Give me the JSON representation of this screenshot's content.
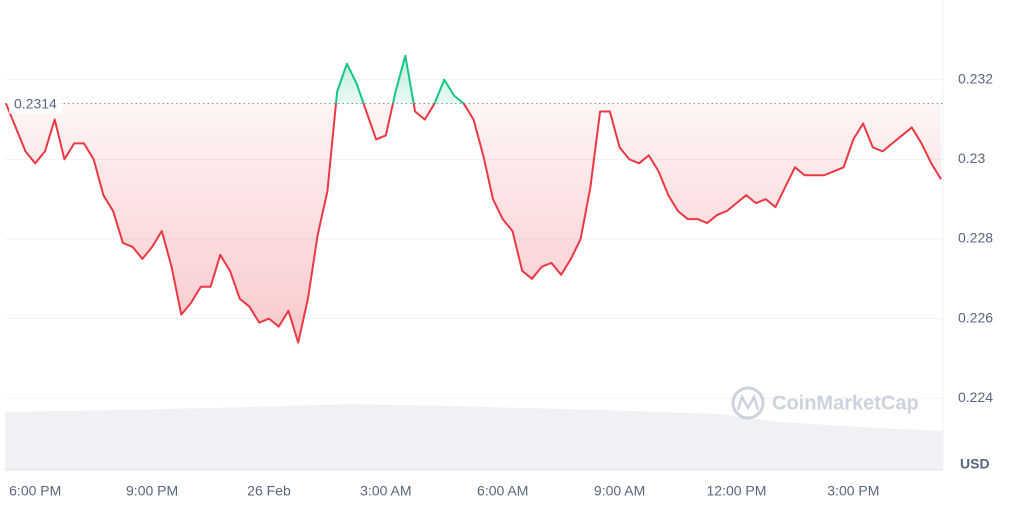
{
  "chart_data": {
    "type": "line",
    "categories": [
      null,
      null,
      null,
      "6:00 PM",
      null,
      null,
      null,
      null,
      null,
      null,
      null,
      null,
      null,
      null,
      null,
      "9:00 PM",
      null,
      null,
      null,
      null,
      null,
      null,
      null,
      null,
      null,
      null,
      null,
      "26 Feb",
      null,
      null,
      null,
      null,
      null,
      null,
      null,
      null,
      null,
      null,
      null,
      "3:00 AM",
      null,
      null,
      null,
      null,
      null,
      null,
      null,
      null,
      null,
      null,
      null,
      "6:00 AM",
      null,
      null,
      null,
      null,
      null,
      null,
      null,
      null,
      null,
      null,
      null,
      "9:00 AM",
      null,
      null,
      null,
      null,
      null,
      null,
      null,
      null,
      null,
      null,
      null,
      "12:00 PM",
      null,
      null,
      null,
      null,
      null,
      null,
      null,
      null,
      null,
      null,
      null,
      "3:00 PM",
      null,
      null,
      null,
      null,
      null,
      null,
      null,
      null,
      null
    ],
    "values": [
      0.2314,
      0.2308,
      0.2302,
      0.2299,
      0.2302,
      0.231,
      0.23,
      0.2304,
      0.2304,
      0.23,
      0.2291,
      0.2287,
      0.2279,
      0.2278,
      0.2275,
      0.2278,
      0.2282,
      0.2273,
      0.2261,
      0.2264,
      0.2268,
      0.2268,
      0.2276,
      0.2272,
      0.2265,
      0.2263,
      0.2259,
      0.226,
      0.2258,
      0.2262,
      0.2254,
      0.2265,
      0.2281,
      0.2292,
      0.2317,
      0.2324,
      0.2319,
      0.2312,
      0.2305,
      0.2306,
      0.2317,
      0.2326,
      0.2312,
      0.231,
      0.2314,
      0.232,
      0.2316,
      0.2314,
      0.231,
      0.2301,
      0.229,
      0.2285,
      0.2282,
      0.2272,
      0.227,
      0.2273,
      0.2274,
      0.2271,
      0.2275,
      0.228,
      0.2293,
      0.2312,
      0.2312,
      0.2303,
      0.23,
      0.2299,
      0.2301,
      0.2297,
      0.2291,
      0.2287,
      0.2285,
      0.2285,
      0.2284,
      0.2286,
      0.2287,
      0.2289,
      0.2291,
      0.2289,
      0.229,
      0.2288,
      0.2293,
      0.2298,
      0.2296,
      0.2296,
      0.2296,
      0.2297,
      0.2298,
      0.2305,
      0.2309,
      0.2303,
      0.2302,
      0.2304,
      0.2306,
      0.2308,
      0.2304,
      0.2299,
      0.2295
    ],
    "baseline": 0.2314,
    "up_color": "#16c784",
    "down_color": "#ea3943",
    "ylim": [
      0.2222,
      0.234
    ],
    "yticks": [
      0.224,
      0.226,
      0.228,
      0.23,
      0.232
    ],
    "y_unit": "USD",
    "grid": true,
    "watermark": "CoinMarketCap"
  }
}
